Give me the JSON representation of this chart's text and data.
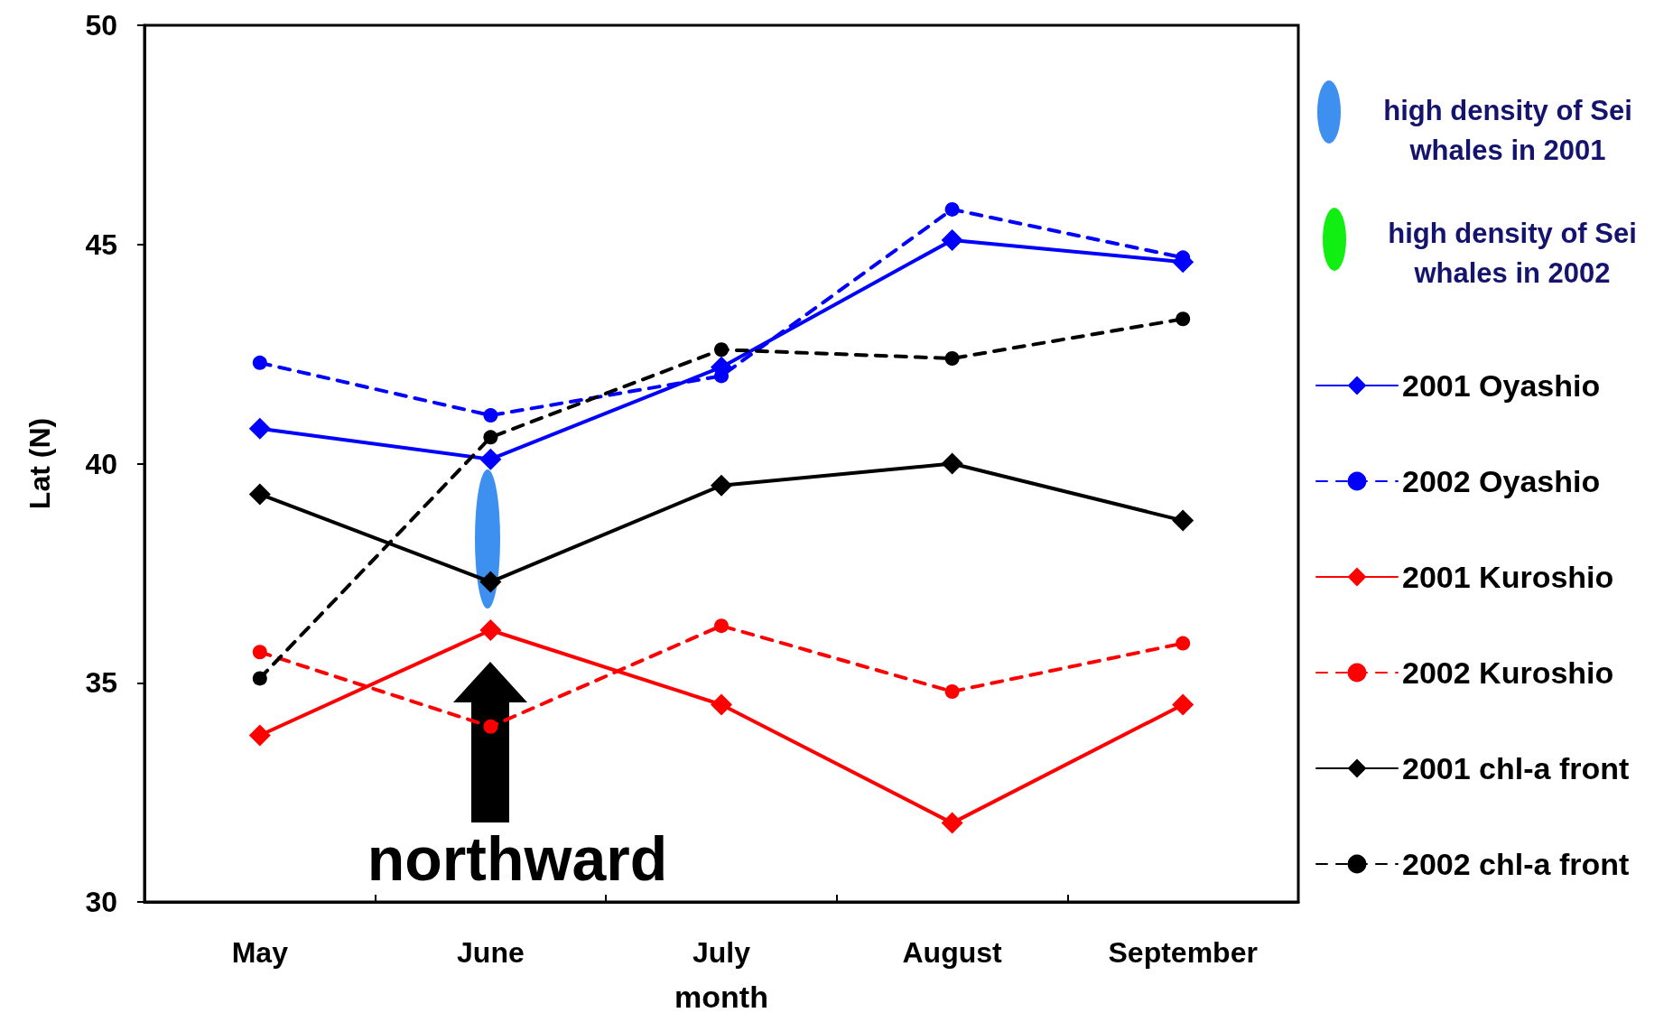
{
  "chart_data": {
    "type": "line",
    "xlabel": "month",
    "ylabel": "Lat (N)",
    "categories": [
      "May",
      "June",
      "July",
      "August",
      "September"
    ],
    "ylim": [
      30,
      50
    ],
    "yticks": [
      30,
      35,
      40,
      45,
      50
    ],
    "legend": "right",
    "annotations": [
      "high density of Sei whales in 2001",
      "high density of Sei whales in 2002",
      "northward"
    ],
    "series": [
      {
        "name": "2001 Oyashio",
        "color": "#0000ff",
        "marker": "diamond",
        "line_style": "solid",
        "values": [
          40.8,
          40.1,
          42.2,
          45.1,
          44.6
        ]
      },
      {
        "name": "2002 Oyashio",
        "color": "#0000ff",
        "marker": "circle",
        "line_style": "dashed",
        "values": [
          42.3,
          41.1,
          42.0,
          45.8,
          44.7
        ]
      },
      {
        "name": "2001 Kuroshio",
        "color": "#ff0000",
        "marker": "diamond",
        "line_style": "solid",
        "values": [
          33.8,
          36.2,
          34.5,
          31.8,
          34.5
        ]
      },
      {
        "name": "2002 Kuroshio",
        "color": "#ff0000",
        "marker": "circle",
        "line_style": "dashed",
        "values": [
          35.7,
          34.0,
          36.3,
          34.8,
          35.9
        ]
      },
      {
        "name": "2001 chl-a front",
        "color": "#000000",
        "marker": "diamond",
        "line_style": "solid",
        "values": [
          39.3,
          37.3,
          39.5,
          40.0,
          38.7
        ]
      },
      {
        "name": "2002 chl-a front",
        "color": "#000000",
        "marker": "circle",
        "line_style": "dashed",
        "values": [
          35.1,
          40.6,
          42.6,
          42.4,
          43.3
        ]
      }
    ]
  }
}
